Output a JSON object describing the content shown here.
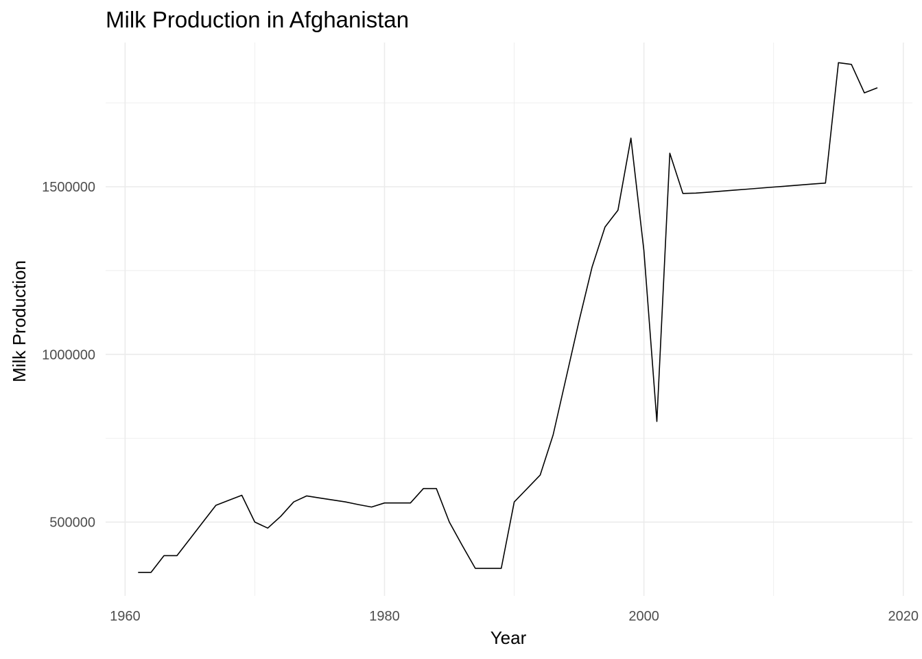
{
  "chart_data": {
    "type": "line",
    "title": "Milk Production in Afghanistan",
    "xlabel": "Year",
    "ylabel": "Milk Production",
    "xlim": [
      1958.5,
      2020.7
    ],
    "ylim": [
      280000,
      1930000
    ],
    "x_major_ticks": [
      1960,
      1980,
      2000,
      2020
    ],
    "x_minor_ticks": [
      1970,
      1990,
      2010
    ],
    "y_major_ticks": [
      500000,
      1000000,
      1500000
    ],
    "y_minor_ticks": [
      750000,
      1250000,
      1750000
    ],
    "x_tick_labels": [
      "1960",
      "1980",
      "2000",
      "2020"
    ],
    "y_tick_labels": [
      "500000",
      "1000000",
      "1500000"
    ],
    "grid": true,
    "series_color": "#000000",
    "grid_color": "#ebebeb",
    "series": [
      {
        "x": [
          1961,
          1962,
          1963,
          1964,
          1965,
          1966,
          1967,
          1968,
          1969,
          1970,
          1971,
          1972,
          1973,
          1974,
          1975,
          1976,
          1977,
          1978,
          1979,
          1980,
          1981,
          1982,
          1983,
          1984,
          1985,
          1986,
          1987,
          1988,
          1989,
          1990,
          1991,
          1992,
          1993,
          1994,
          1995,
          1996,
          1997,
          1998,
          1999,
          2000,
          2001,
          2002,
          2003,
          2004,
          2005,
          2006,
          2007,
          2008,
          2009,
          2010,
          2011,
          2012,
          2013,
          2014,
          2015,
          2016,
          2017,
          2018
        ],
        "y": [
          350000,
          350000,
          400000,
          400000,
          450000,
          500000,
          550000,
          565000,
          580000,
          500000,
          482000,
          517000,
          560000,
          578000,
          572000,
          566000,
          560000,
          552000,
          545000,
          557000,
          557000,
          557000,
          600000,
          600000,
          500000,
          430000,
          362000,
          362000,
          362000,
          560000,
          600000,
          640000,
          760000,
          930000,
          1100000,
          1260000,
          1380000,
          1430000,
          1645000,
          1310000,
          800000,
          1600000,
          1480000,
          1481000,
          1484000,
          1487000,
          1490000,
          1493000,
          1496000,
          1499000,
          1502000,
          1505000,
          1508000,
          1511000,
          1870000,
          1865000,
          1780000,
          1795000
        ]
      }
    ]
  }
}
